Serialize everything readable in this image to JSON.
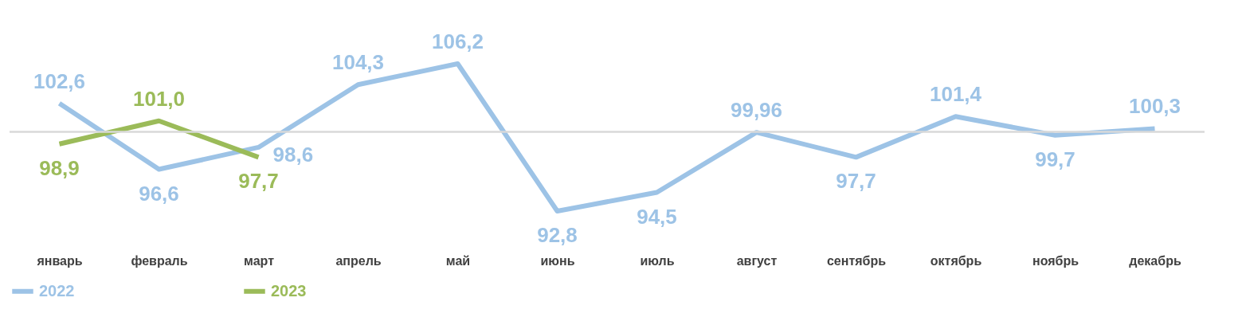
{
  "chart_data": {
    "type": "line",
    "categories": [
      "январь",
      "февраль",
      "март",
      "апрель",
      "май",
      "июнь",
      "июль",
      "август",
      "сентябрь",
      "октябрь",
      "ноябрь",
      "декабрь"
    ],
    "series": [
      {
        "name": "2022",
        "color": "#9dc3e6",
        "values": [
          102.6,
          96.6,
          98.6,
          104.3,
          106.2,
          92.8,
          94.5,
          99.96,
          97.7,
          101.4,
          99.7,
          100.3
        ],
        "value_labels": [
          "102,6",
          "96,6",
          "98,6",
          "104,3",
          "106,2",
          "92,8",
          "94,5",
          "99,96",
          "97,7",
          "101,4",
          "99,7",
          "100,3"
        ]
      },
      {
        "name": "2023",
        "color": "#9bbb59",
        "values": [
          98.9,
          101.0,
          97.7,
          null,
          null,
          null,
          null,
          null,
          null,
          null,
          null,
          null
        ],
        "value_labels": [
          "98,9",
          "101,0",
          "97,7",
          null,
          null,
          null,
          null,
          null,
          null,
          null,
          null,
          null
        ]
      }
    ],
    "ref_lines": [
      {
        "axis": "y",
        "value": 100,
        "color": "#d9d9d9"
      }
    ],
    "legend": "bottom",
    "tick_labels": "x",
    "grid": false,
    "marker": "none",
    "line_style": "solid"
  }
}
